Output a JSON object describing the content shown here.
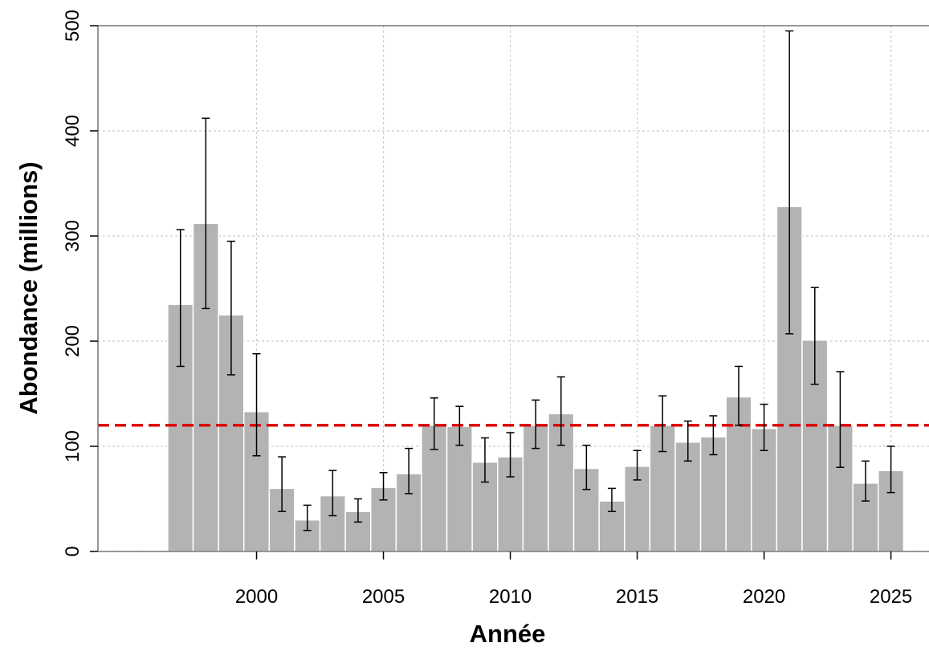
{
  "chart_data": {
    "type": "bar",
    "title": "",
    "xlabel": "Année",
    "ylabel": "Abondance (millions)",
    "x": [
      1997,
      1998,
      1999,
      2000,
      2001,
      2002,
      2003,
      2004,
      2005,
      2006,
      2007,
      2008,
      2009,
      2010,
      2011,
      2012,
      2013,
      2014,
      2015,
      2016,
      2017,
      2018,
      2019,
      2020,
      2021,
      2022,
      2023,
      2024,
      2025
    ],
    "values": [
      235,
      312,
      225,
      133,
      60,
      30,
      53,
      38,
      61,
      74,
      120,
      119,
      85,
      90,
      120,
      131,
      79,
      48,
      81,
      120,
      104,
      109,
      147,
      117,
      328,
      201,
      120,
      65,
      77
    ],
    "error_lower": [
      176,
      231,
      168,
      91,
      38,
      20,
      34,
      28,
      49,
      55,
      97,
      101,
      66,
      71,
      98,
      101,
      59,
      38,
      68,
      95,
      86,
      92,
      120,
      96,
      207,
      159,
      80,
      48,
      56
    ],
    "error_upper": [
      306,
      412,
      295,
      188,
      90,
      44,
      77,
      50,
      75,
      98,
      146,
      138,
      108,
      113,
      144,
      166,
      101,
      60,
      96,
      148,
      124,
      129,
      176,
      140,
      495,
      251,
      171,
      86,
      100
    ],
    "reference_line": 120,
    "xlim": [
      1993.75,
      2026.5
    ],
    "ylim": [
      0,
      500
    ],
    "x_ticks": [
      2000,
      2005,
      2010,
      2015,
      2020,
      2025
    ],
    "y_ticks": [
      0,
      100,
      200,
      300,
      400,
      500
    ],
    "grid": true,
    "colors": {
      "bar_fill": "#b3b3b3",
      "bar_edge": "#ffffff",
      "reference_line": "#dd0000",
      "grid": "#cccccc",
      "axis": "#777777",
      "error_bar": "#000000"
    }
  }
}
